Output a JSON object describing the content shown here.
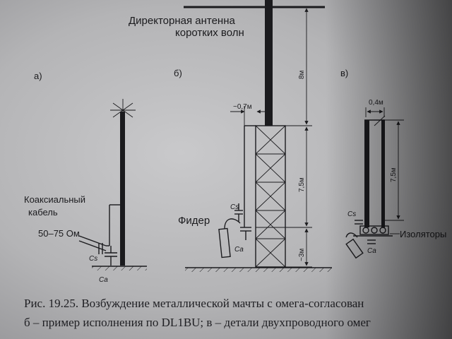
{
  "panels": {
    "a": {
      "label": "а)",
      "cable_1": "Коаксиальный",
      "cable_2": "кабель",
      "impedance": "50–75 Ом",
      "cs": "Cs",
      "ca": "Ca"
    },
    "b": {
      "label": "б)",
      "antenna_1": "Директорная антенна",
      "antenna_2": "коротких волн",
      "width": "~0,7м",
      "mast_top": "8м",
      "mast_mid": "7,5м",
      "mast_low": "~3м",
      "feeder": "Фидер",
      "cs": "Cs",
      "ca": "Ca"
    },
    "c": {
      "label": "в)",
      "width": "0,4м",
      "height": "7,5м",
      "cs": "Cs",
      "ca": "Ca",
      "insulators": "Изоляторы"
    }
  },
  "caption": {
    "line1": "Рис. 19.25. Возбуждение металлической мачты с омега-согласован",
    "line2": "б – пример исполнения по DL1BU; в – детали двухпроводного омег"
  }
}
